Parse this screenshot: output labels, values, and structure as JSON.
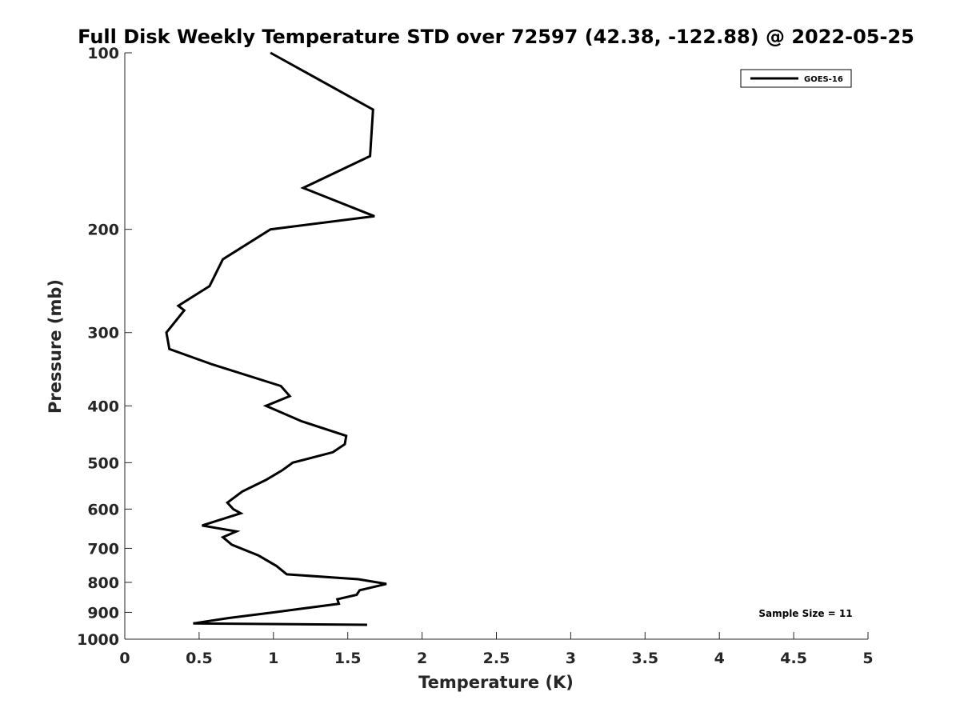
{
  "chart_data": {
    "type": "line",
    "title": "Full Disk Weekly Temperature STD over 72597 (42.38, -122.88) @ 2022-05-25",
    "xlabel": "Temperature (K)",
    "ylabel": "Pressure (mb)",
    "xlim": [
      0,
      5
    ],
    "ylim": [
      1000,
      100
    ],
    "y_scale": "log",
    "x_ticks": [
      "0",
      "0.5",
      "1",
      "1.5",
      "2",
      "2.5",
      "3",
      "3.5",
      "4",
      "4.5",
      "5"
    ],
    "x_tick_values": [
      0,
      0.5,
      1,
      1.5,
      2,
      2.5,
      3,
      3.5,
      4,
      4.5,
      5
    ],
    "y_ticks": [
      "100",
      "200",
      "300",
      "400",
      "500",
      "600",
      "700",
      "800",
      "900",
      "1000"
    ],
    "y_tick_values": [
      100,
      200,
      300,
      400,
      500,
      600,
      700,
      800,
      900,
      1000
    ],
    "grid": false,
    "legend": {
      "placement": "top-right",
      "entries": [
        "GOES-16"
      ]
    },
    "annotation": "Sample Size = 11",
    "series": [
      {
        "name": "GOES-16",
        "color": "#000000",
        "points": [
          [
            0.98,
            100
          ],
          [
            1.67,
            125
          ],
          [
            1.65,
            150
          ],
          [
            1.2,
            170
          ],
          [
            1.68,
            190
          ],
          [
            0.98,
            200
          ],
          [
            0.66,
            225
          ],
          [
            0.57,
            250
          ],
          [
            0.36,
            270
          ],
          [
            0.4,
            275
          ],
          [
            0.28,
            300
          ],
          [
            0.3,
            320
          ],
          [
            0.59,
            340
          ],
          [
            1.05,
            370
          ],
          [
            1.11,
            385
          ],
          [
            0.95,
            400
          ],
          [
            1.19,
            425
          ],
          [
            1.49,
            450
          ],
          [
            1.48,
            465
          ],
          [
            1.4,
            480
          ],
          [
            1.13,
            500
          ],
          [
            1.06,
            515
          ],
          [
            0.95,
            535
          ],
          [
            0.79,
            560
          ],
          [
            0.69,
            585
          ],
          [
            0.73,
            600
          ],
          [
            0.78,
            610
          ],
          [
            0.52,
            640
          ],
          [
            0.75,
            655
          ],
          [
            0.66,
            670
          ],
          [
            0.72,
            690
          ],
          [
            0.9,
            720
          ],
          [
            1.02,
            750
          ],
          [
            1.09,
            775
          ],
          [
            1.57,
            790
          ],
          [
            1.76,
            805
          ],
          [
            1.58,
            825
          ],
          [
            1.56,
            840
          ],
          [
            1.43,
            855
          ],
          [
            1.44,
            870
          ],
          [
            1.0,
            900
          ],
          [
            0.7,
            920
          ],
          [
            0.46,
            940
          ],
          [
            1.63,
            945
          ]
        ]
      }
    ]
  }
}
